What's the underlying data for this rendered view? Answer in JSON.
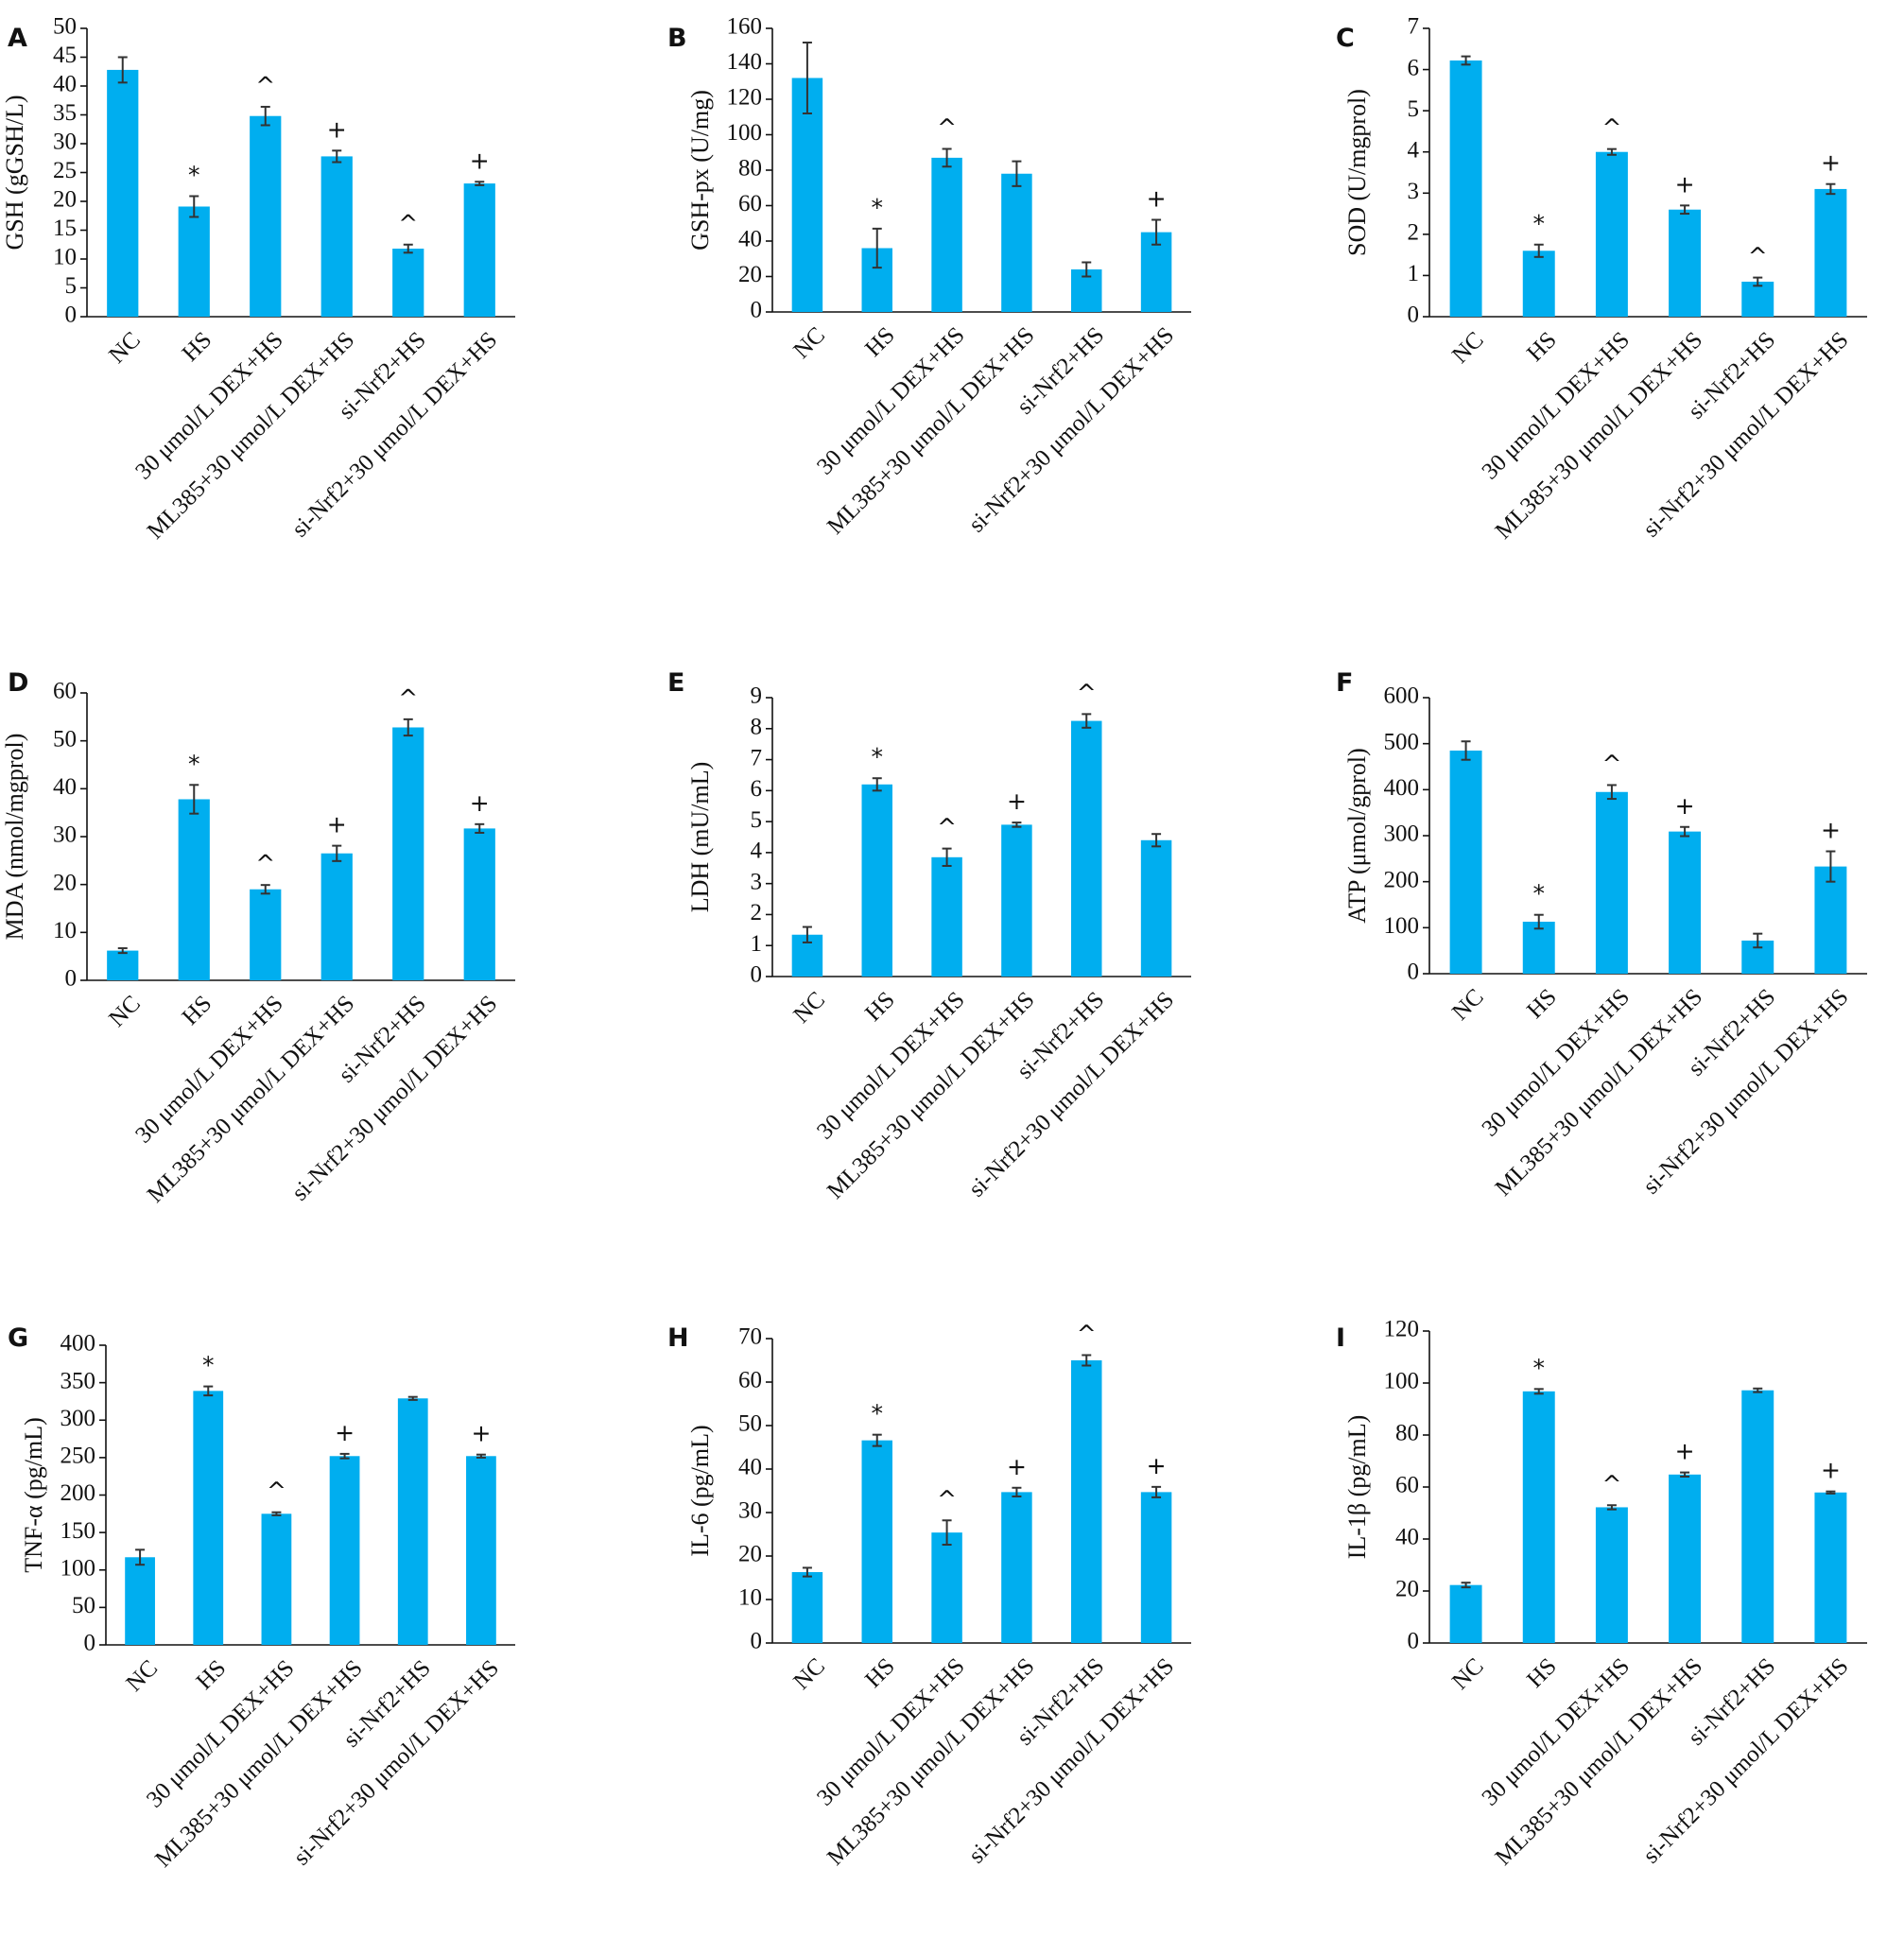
{
  "colors": {
    "bar": "#00AEEF",
    "axis": "#111111",
    "error": "#333333"
  },
  "categories": [
    "NC",
    "HS",
    "30 μmol/L DEX+HS",
    "ML385+30 μmol/L DEX+HS",
    "si-Nrf2+HS",
    "si-Nrf2+30 μmol/L DEX+HS"
  ],
  "chart_data": [
    {
      "panel": "A",
      "type": "bar",
      "ylabel": "GSH (gGSH/L)",
      "ylim": [
        0,
        50
      ],
      "yticks": [
        0,
        5,
        10,
        15,
        20,
        25,
        30,
        35,
        40,
        45,
        50
      ],
      "values": [
        42.8,
        19.1,
        34.8,
        27.8,
        11.8,
        23.1
      ],
      "errors": [
        2.2,
        1.8,
        1.6,
        1.0,
        0.7,
        0.3
      ],
      "marks": [
        "",
        "*",
        "^",
        "+",
        "^",
        "+"
      ]
    },
    {
      "panel": "B",
      "type": "bar",
      "ylabel": "GSH-px (U/mg)",
      "ylim": [
        0,
        160
      ],
      "yticks": [
        0,
        20,
        40,
        60,
        80,
        100,
        120,
        140,
        160
      ],
      "values": [
        132,
        36,
        87,
        78,
        24,
        45
      ],
      "errors": [
        20,
        11,
        5,
        7,
        4,
        7
      ],
      "marks": [
        "",
        "*",
        "^",
        "",
        "",
        "+"
      ]
    },
    {
      "panel": "C",
      "type": "bar",
      "ylabel": "SOD (U/mgprol)",
      "ylim": [
        0,
        7
      ],
      "yticks": [
        0,
        1,
        2,
        3,
        4,
        5,
        6,
        7
      ],
      "values": [
        6.22,
        1.6,
        4.0,
        2.6,
        0.85,
        3.1
      ],
      "errors": [
        0.1,
        0.15,
        0.07,
        0.1,
        0.1,
        0.12
      ],
      "marks": [
        "",
        "*",
        "^",
        "+",
        "^",
        "+"
      ]
    },
    {
      "panel": "D",
      "type": "bar",
      "ylabel": "MDA (nmol/mgprol)",
      "ylim": [
        0,
        60
      ],
      "yticks": [
        0,
        10,
        20,
        30,
        40,
        50,
        60
      ],
      "values": [
        6.2,
        37.8,
        19.0,
        26.5,
        52.8,
        31.7
      ],
      "errors": [
        0.5,
        3.0,
        0.9,
        1.6,
        1.7,
        0.9
      ],
      "marks": [
        "",
        "*",
        "^",
        "+",
        "^",
        "+"
      ]
    },
    {
      "panel": "E",
      "type": "bar",
      "ylabel": "LDH (mU/mL)",
      "ylim": [
        0,
        9
      ],
      "yticks": [
        0,
        1,
        2,
        3,
        4,
        5,
        6,
        7,
        8,
        9
      ],
      "values": [
        1.35,
        6.2,
        3.85,
        4.9,
        8.25,
        4.4
      ],
      "errors": [
        0.25,
        0.2,
        0.28,
        0.07,
        0.22,
        0.2
      ],
      "marks": [
        "",
        "*",
        "^",
        "+",
        "^",
        ""
      ]
    },
    {
      "panel": "F",
      "type": "bar",
      "ylabel": "ATP (μmol/gprol)",
      "ylim": [
        0,
        600
      ],
      "yticks": [
        0,
        100,
        200,
        300,
        400,
        500,
        600
      ],
      "values": [
        485,
        113,
        395,
        309,
        72,
        233
      ],
      "errors": [
        20,
        15,
        15,
        10,
        15,
        33
      ],
      "marks": [
        "",
        "*",
        "^",
        "+",
        "",
        "+"
      ]
    },
    {
      "panel": "G",
      "type": "bar",
      "ylabel": "TNF-α (pg/mL)",
      "ylim": [
        0,
        400
      ],
      "yticks": [
        0,
        50,
        100,
        150,
        200,
        250,
        300,
        350,
        400
      ],
      "values": [
        117,
        339,
        175,
        252,
        329,
        252
      ],
      "errors": [
        10,
        6,
        2,
        3,
        2,
        2
      ],
      "marks": [
        "",
        "*",
        "^",
        "+",
        "",
        "+"
      ]
    },
    {
      "panel": "H",
      "type": "bar",
      "ylabel": "IL-6 (pg/mL)",
      "ylim": [
        0,
        70
      ],
      "yticks": [
        0,
        10,
        20,
        30,
        40,
        50,
        60,
        70
      ],
      "values": [
        16.3,
        46.6,
        25.4,
        34.7,
        65.0,
        34.7
      ],
      "errors": [
        1.0,
        1.3,
        2.8,
        1.0,
        1.2,
        1.2
      ],
      "marks": [
        "",
        "*",
        "^",
        "+",
        "^",
        "+"
      ]
    },
    {
      "panel": "I",
      "type": "bar",
      "ylabel": "IL-1β (pg/mL)",
      "ylim": [
        0,
        120
      ],
      "yticks": [
        0,
        20,
        40,
        60,
        80,
        100,
        120
      ],
      "values": [
        22.3,
        96.8,
        52.2,
        64.8,
        97.2,
        57.9
      ],
      "errors": [
        0.9,
        0.9,
        0.8,
        0.8,
        0.7,
        0.4
      ],
      "marks": [
        "",
        "*",
        "^",
        "+",
        "",
        "+"
      ]
    }
  ]
}
